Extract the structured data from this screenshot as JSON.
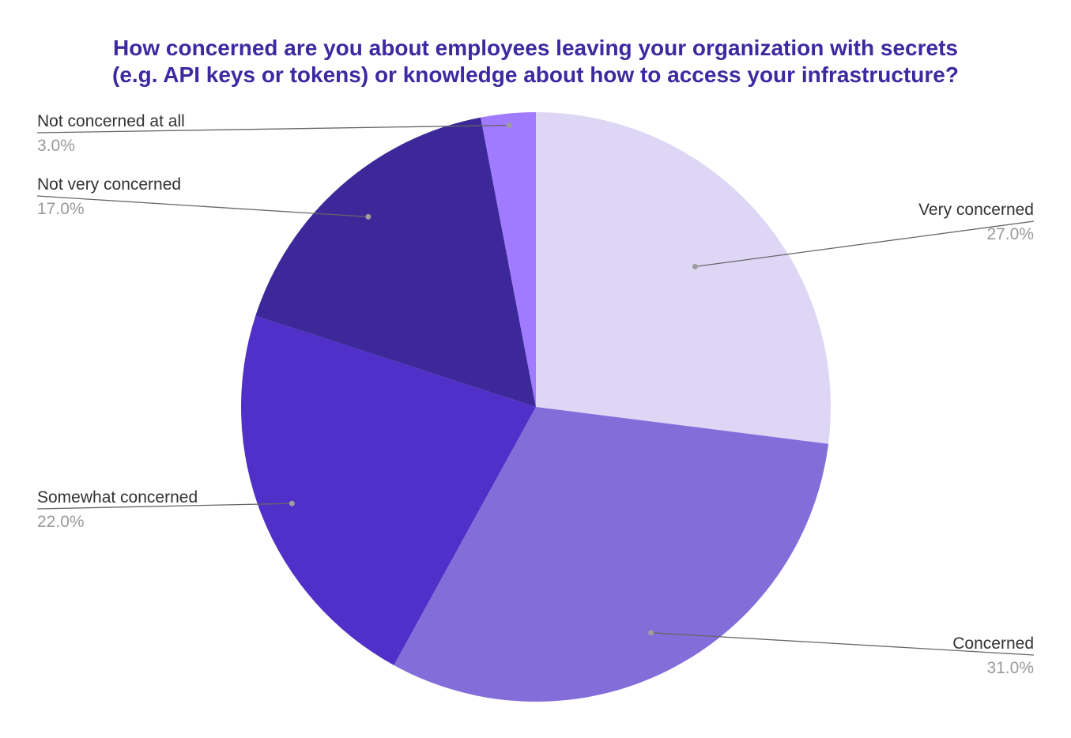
{
  "chart_data": {
    "type": "pie",
    "title": {
      "line1": "How concerned are you about employees leaving your organization with secrets",
      "line2": "(e.g. API keys or tokens) or knowledge about how to access your infrastructure?"
    },
    "legend": "none",
    "slices": [
      {
        "label": "Very concerned",
        "value": 27.0,
        "value_label": "27.0%",
        "color": "#ddd6f5"
      },
      {
        "label": "Concerned",
        "value": 31.0,
        "value_label": "31.0%",
        "color": "#836ed9"
      },
      {
        "label": "Somewhat concerned",
        "value": 22.0,
        "value_label": "22.0%",
        "color": "#5030c8"
      },
      {
        "label": "Not very concerned",
        "value": 17.0,
        "value_label": "17.0%",
        "color": "#3c2898"
      },
      {
        "label": "Not concerned at all",
        "value": 3.0,
        "value_label": "3.0%",
        "color": "#a07bff"
      }
    ],
    "colors": {
      "title": "#3c2aa0",
      "label_text": "#333333",
      "value_text": "#999999",
      "leader_line": "#666666",
      "leader_dot": "#9e9e9e"
    }
  }
}
